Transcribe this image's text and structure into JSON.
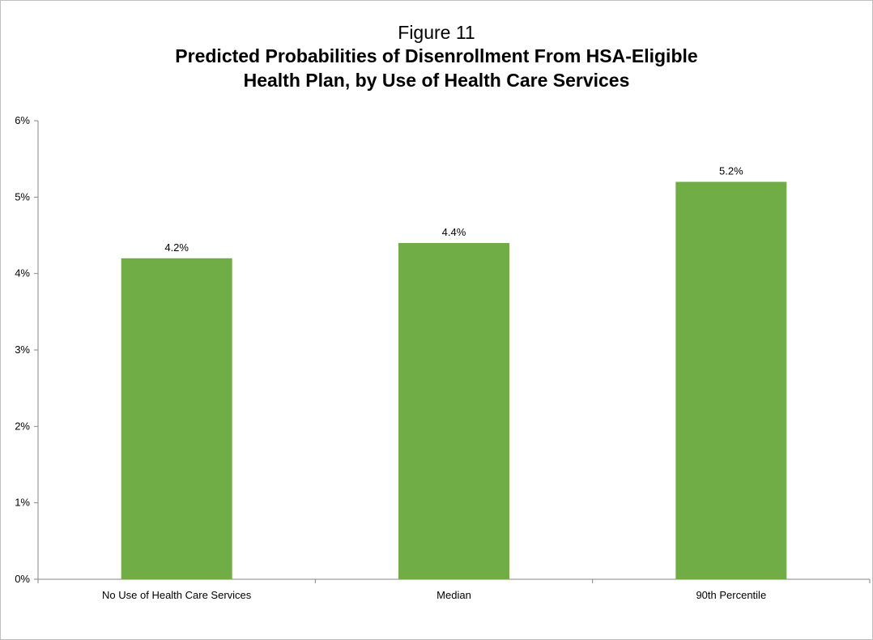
{
  "chart_data": {
    "type": "bar",
    "figure_label": "Figure 11",
    "title_lines": [
      "Predicted Probabilities of Disenrollment From HSA-Eligible",
      "Health Plan, by Use of Health Care Services"
    ],
    "categories": [
      "No Use of Health Care Services",
      "Median",
      "90th Percentile"
    ],
    "values": [
      4.2,
      4.4,
      5.2
    ],
    "data_labels": [
      "4.2%",
      "4.4%",
      "5.2%"
    ],
    "ylim": [
      0,
      6
    ],
    "yticks": [
      0,
      1,
      2,
      3,
      4,
      5,
      6
    ],
    "ytick_labels": [
      "0%",
      "1%",
      "2%",
      "3%",
      "4%",
      "5%",
      "6%"
    ],
    "xlabel": "",
    "ylabel": "",
    "grid": false,
    "legend": "none",
    "bar_color": "#70AD47"
  }
}
